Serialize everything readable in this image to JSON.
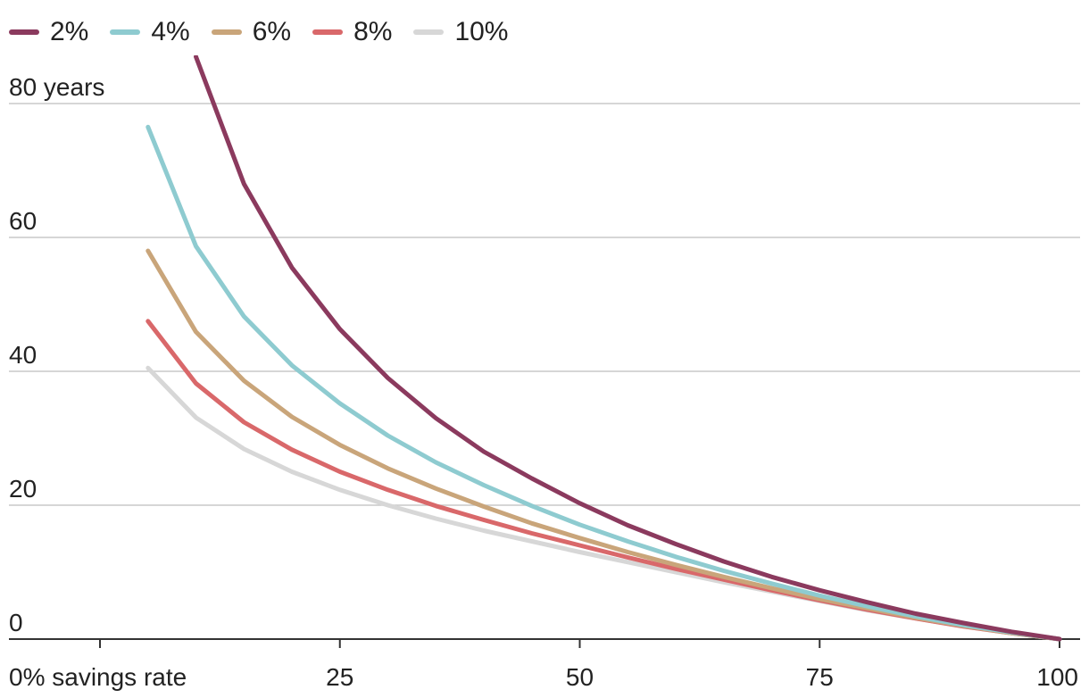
{
  "chart_data": {
    "type": "line",
    "title": "",
    "xlabel": "",
    "ylabel": "",
    "x": [
      5,
      10,
      15,
      20,
      25,
      30,
      35,
      40,
      45,
      50,
      55,
      60,
      65,
      70,
      75,
      80,
      85,
      90,
      95,
      100
    ],
    "xlim": [
      0,
      100
    ],
    "ylim": [
      0,
      80
    ],
    "x_ticks": [
      {
        "value": 0,
        "label": "0% savings rate"
      },
      {
        "value": 25,
        "label": "25"
      },
      {
        "value": 50,
        "label": "50"
      },
      {
        "value": 75,
        "label": "75"
      },
      {
        "value": 100,
        "label": "100"
      }
    ],
    "y_ticks": [
      {
        "value": 0,
        "label": "0"
      },
      {
        "value": 20,
        "label": "20"
      },
      {
        "value": 40,
        "label": "40"
      },
      {
        "value": 60,
        "label": "60"
      },
      {
        "value": 80,
        "label": "80 years"
      }
    ],
    "grid": "horizontal",
    "legend_position": "top-left",
    "series": [
      {
        "name": "2%",
        "color": "#8b3a5e",
        "values": [
          null,
          87,
          68,
          55.5,
          46.3,
          39,
          33,
          28,
          24,
          20.3,
          17,
          14.2,
          11.6,
          9.3,
          7.3,
          5.5,
          3.8,
          2.4,
          1.1,
          0
        ]
      },
      {
        "name": "4%",
        "color": "#8ecbd0",
        "values": [
          76.5,
          58.7,
          48.2,
          40.9,
          35.2,
          30.4,
          26.4,
          23,
          19.9,
          17.1,
          14.6,
          12.3,
          10.2,
          8.3,
          6.5,
          4.9,
          3.4,
          2.1,
          1,
          0
        ]
      },
      {
        "name": "6%",
        "color": "#c9a57a",
        "values": [
          58,
          45.9,
          38.6,
          33.2,
          29,
          25.5,
          22.5,
          19.8,
          17.3,
          15.1,
          13,
          11.1,
          9.3,
          7.6,
          6,
          4.6,
          3.2,
          2,
          0.9,
          0
        ]
      },
      {
        "name": "8%",
        "color": "#d9686a",
        "values": [
          47.5,
          38.2,
          32.4,
          28.3,
          25,
          22.3,
          19.9,
          17.8,
          15.8,
          14,
          12.2,
          10.5,
          8.9,
          7.3,
          5.8,
          4.4,
          3.1,
          1.9,
          0.9,
          0
        ]
      },
      {
        "name": "10%",
        "color": "#d7d7d7",
        "values": [
          40.5,
          33.1,
          28.4,
          25,
          22.3,
          20,
          18,
          16.2,
          14.6,
          13,
          11.5,
          10,
          8.5,
          7.1,
          5.7,
          4.3,
          3.1,
          1.9,
          0.9,
          0
        ]
      }
    ]
  }
}
